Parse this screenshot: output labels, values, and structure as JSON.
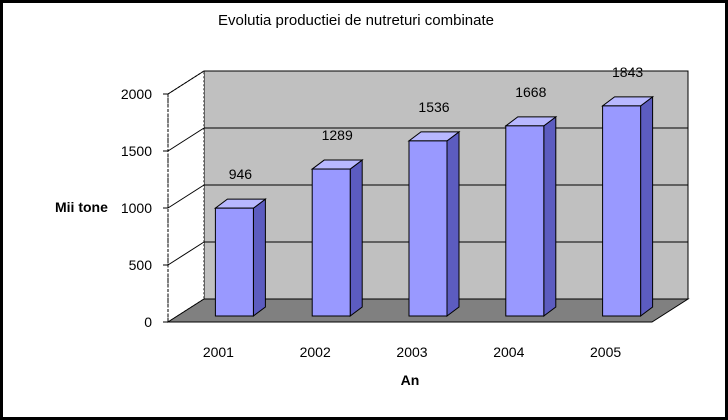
{
  "chart_data": {
    "type": "bar",
    "title": "Evolutia productiei de nutreturi combinate",
    "xlabel": "An",
    "ylabel": "Mii tone",
    "categories": [
      "2001",
      "2002",
      "2003",
      "2004",
      "2005"
    ],
    "values": [
      946,
      1289,
      1536,
      1668,
      1843
    ],
    "ylim": [
      0,
      2000
    ],
    "yticks": [
      "0",
      "500",
      "1000",
      "1500",
      "2000"
    ],
    "data_labels": [
      "946",
      "1289",
      "1536",
      "1668",
      "1843"
    ],
    "grid": true,
    "legend": "none",
    "style": "3d-column",
    "colors": {
      "bar_front": "#9999ff",
      "bar_side": "#5c5cc0",
      "bar_top": "#b8b8ff",
      "back_wall": "#c0c0c0",
      "floor": "#808080",
      "gridline": "#000000"
    }
  }
}
